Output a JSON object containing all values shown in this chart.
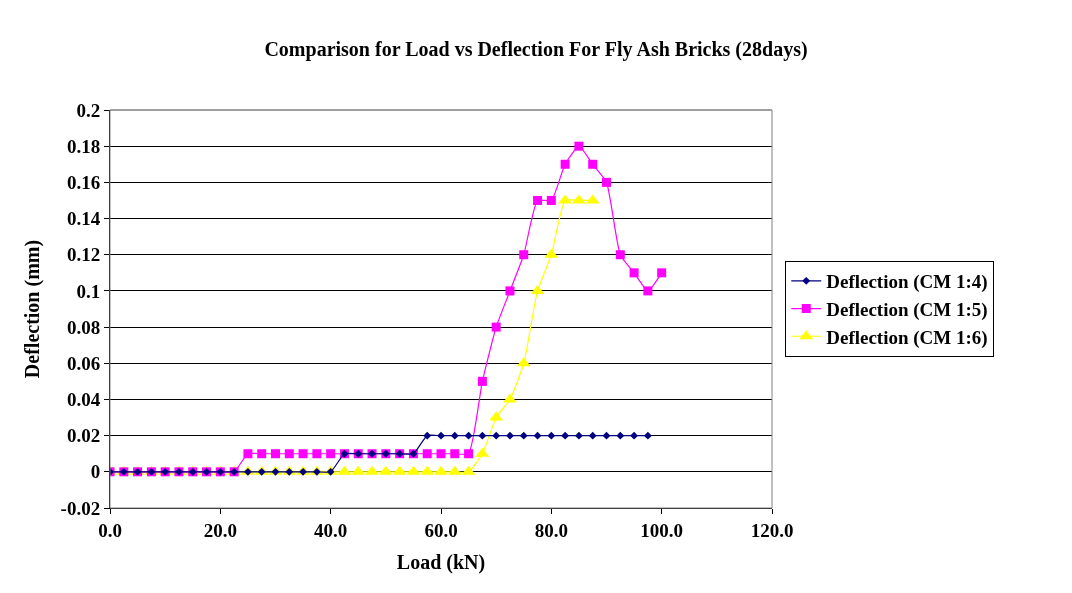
{
  "chart_data": {
    "type": "line",
    "title": "Comparison for Load vs Deflection For Fly Ash Bricks (28days)",
    "xlabel": "Load (kN)",
    "ylabel": "Deflection (mm)",
    "xlim": [
      0,
      120
    ],
    "xticks": [
      {
        "value": 0,
        "label": "0.0"
      },
      {
        "value": 20,
        "label": "20.0"
      },
      {
        "value": 40,
        "label": "40.0"
      },
      {
        "value": 60,
        "label": "60.0"
      },
      {
        "value": 80,
        "label": "80.0"
      },
      {
        "value": 100,
        "label": "100.0"
      },
      {
        "value": 120,
        "label": "120.0"
      }
    ],
    "ylim": [
      -0.02,
      0.2
    ],
    "yticks": [
      -0.02,
      0,
      0.02,
      0.04,
      0.06,
      0.08,
      0.1,
      0.12,
      0.14,
      0.16,
      0.18,
      0.2
    ],
    "grid": "y",
    "legend": "right",
    "series": [
      {
        "name": "Deflection (CM 1:4)",
        "color": "#000080",
        "marker": "diamond",
        "x": [
          0,
          2.5,
          5,
          7.5,
          10,
          12.5,
          15,
          17.5,
          20,
          22.5,
          25,
          27.5,
          30,
          32.5,
          35,
          37.5,
          40,
          42.5,
          45,
          47.5,
          50,
          52.5,
          55,
          57.5,
          60,
          62.5,
          65,
          67.5,
          70,
          72.5,
          75,
          77.5,
          80,
          82.5,
          85,
          87.5,
          90,
          92.5,
          95,
          97.5
        ],
        "values": [
          0,
          0,
          0,
          0,
          0,
          0,
          0,
          0,
          0,
          0,
          0,
          0,
          0,
          0,
          0,
          0,
          0,
          0.01,
          0.01,
          0.01,
          0.01,
          0.01,
          0.01,
          0.02,
          0.02,
          0.02,
          0.02,
          0.02,
          0.02,
          0.02,
          0.02,
          0.02,
          0.02,
          0.02,
          0.02,
          0.02,
          0.02,
          0.02,
          0.02,
          0.02
        ]
      },
      {
        "name": "Deflection (CM 1:5)",
        "color": "#ff00ff",
        "marker": "square",
        "x": [
          0,
          2.5,
          5,
          7.5,
          10,
          12.5,
          15,
          17.5,
          20,
          22.5,
          25,
          27.5,
          30,
          32.5,
          35,
          37.5,
          40,
          42.5,
          45,
          47.5,
          50,
          52.5,
          55,
          57.5,
          60,
          62.5,
          65,
          67.5,
          70,
          72.5,
          75,
          77.5,
          80,
          82.5,
          85,
          87.5,
          90,
          92.5,
          95,
          97.5,
          100
        ],
        "values": [
          0,
          0,
          0,
          0,
          0,
          0,
          0,
          0,
          0,
          0,
          0.01,
          0.01,
          0.01,
          0.01,
          0.01,
          0.01,
          0.01,
          0.01,
          0.01,
          0.01,
          0.01,
          0.01,
          0.01,
          0.01,
          0.01,
          0.01,
          0.01,
          0.05,
          0.08,
          0.1,
          0.12,
          0.15,
          0.15,
          0.17,
          0.18,
          0.17,
          0.16,
          0.12,
          0.11,
          0.1,
          0.11
        ]
      },
      {
        "name": "Deflection (CM 1:6)",
        "color": "#ffff00",
        "marker": "triangle",
        "x": [
          0,
          2.5,
          5,
          7.5,
          10,
          12.5,
          15,
          17.5,
          20,
          22.5,
          25,
          27.5,
          30,
          32.5,
          35,
          37.5,
          40,
          42.5,
          45,
          47.5,
          50,
          52.5,
          55,
          57.5,
          60,
          62.5,
          65,
          67.5,
          70,
          72.5,
          75,
          77.5,
          80,
          82.5,
          85,
          87.5
        ],
        "values": [
          0,
          0,
          0,
          0,
          0,
          0,
          0,
          0,
          0,
          0,
          0,
          0,
          0,
          0,
          0,
          0,
          0,
          0,
          0,
          0,
          0,
          0,
          0,
          0,
          0,
          0,
          0,
          0.01,
          0.03,
          0.04,
          0.06,
          0.1,
          0.12,
          0.15,
          0.15,
          0.15
        ]
      }
    ]
  }
}
